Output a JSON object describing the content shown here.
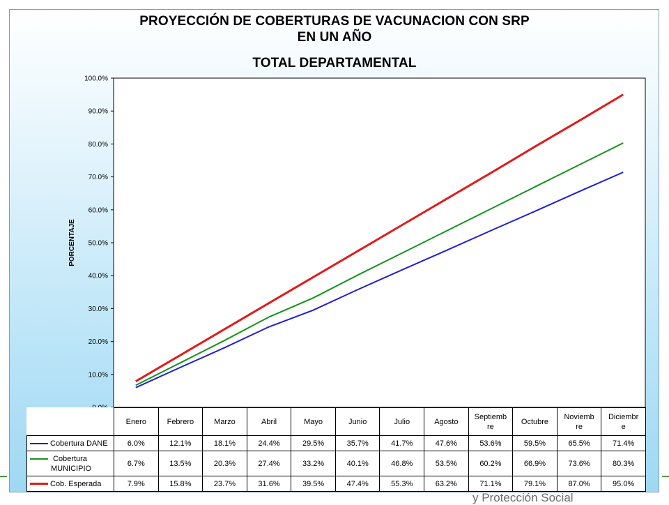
{
  "title": {
    "line1": "PROYECCIÓN DE COBERTURAS DE VACUNACION CON SRP",
    "line2": "EN UN AÑO",
    "line3": "TOTAL DEPARTAMENTAL"
  },
  "footer_text": "y Protección Social",
  "chart_data": {
    "type": "line",
    "title": "PROYECCIÓN DE COBERTURAS DE VACUNACION CON SRP EN UN AÑO TOTAL DEPARTAMENTAL",
    "xlabel": "",
    "ylabel": "PORCENTAJE",
    "ylim": [
      0,
      100
    ],
    "yticks": [
      "0.0%",
      "10.0%",
      "20.0%",
      "30.0%",
      "40.0%",
      "50.0%",
      "60.0%",
      "70.0%",
      "80.0%",
      "90.0%",
      "100.0%"
    ],
    "grid": false,
    "legend": "data table below chart",
    "categories": [
      [
        "Enero"
      ],
      [
        "Febrero"
      ],
      [
        "Marzo"
      ],
      [
        "Abril"
      ],
      [
        "Mayo"
      ],
      [
        "Junio"
      ],
      [
        "Julio"
      ],
      [
        "Agosto"
      ],
      [
        "Septiemb",
        "re"
      ],
      [
        "Octubre"
      ],
      [
        "Noviemb",
        "re"
      ],
      [
        "Diciembr",
        "e"
      ]
    ],
    "series": [
      {
        "name": "Cobertura DANE",
        "name_lines": [
          "Cobertura DANE"
        ],
        "color": "#1f1fd0",
        "values": [
          6.0,
          12.1,
          18.1,
          24.4,
          29.5,
          35.7,
          41.7,
          47.6,
          53.6,
          59.5,
          65.5,
          71.4
        ],
        "labels": [
          "6.0%",
          "12.1%",
          "18.1%",
          "24.4%",
          "29.5%",
          "35.7%",
          "41.7%",
          "47.6%",
          "53.6%",
          "59.5%",
          "65.5%",
          "71.4%"
        ]
      },
      {
        "name": "Cobertura MUNICIPIO",
        "name_lines": [
          "Cobertura",
          "MUNICIPIO"
        ],
        "color": "#16911c",
        "values": [
          6.7,
          13.5,
          20.3,
          27.4,
          33.2,
          40.1,
          46.8,
          53.5,
          60.2,
          66.9,
          73.6,
          80.3
        ],
        "labels": [
          "6.7%",
          "13.5%",
          "20.3%",
          "27.4%",
          "33.2%",
          "40.1%",
          "46.8%",
          "53.5%",
          "60.2%",
          "66.9%",
          "73.6%",
          "80.3%"
        ]
      },
      {
        "name": "Cob. Esperada",
        "name_lines": [
          "Cob. Esperada"
        ],
        "color": "#e11b1b",
        "values": [
          7.9,
          15.8,
          23.7,
          31.6,
          39.5,
          47.4,
          55.3,
          63.2,
          71.1,
          79.1,
          87.0,
          95.0
        ],
        "labels": [
          "7.9%",
          "15.8%",
          "23.7%",
          "31.6%",
          "39.5%",
          "47.4%",
          "55.3%",
          "63.2%",
          "71.1%",
          "79.1%",
          "87.0%",
          "95.0%"
        ]
      }
    ]
  }
}
